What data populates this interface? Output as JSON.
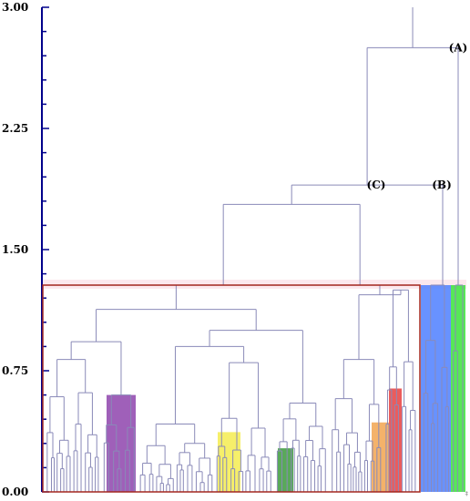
{
  "chart_data": {
    "type": "dendrogram",
    "title": "",
    "xlabel": "",
    "ylabel": "",
    "ylim": [
      0,
      3
    ],
    "y_ticks": [
      "0.00",
      "0.75",
      "1.50",
      "2.25",
      "3.00"
    ],
    "y_tick_values": [
      0,
      0.75,
      1.5,
      2.25,
      3
    ],
    "cut_threshold": 1.28,
    "merges": [
      {
        "label": "(A)",
        "height": 2.75
      },
      {
        "label": "(B)",
        "height": 1.9
      },
      {
        "label": "(C)",
        "height": 1.9
      }
    ],
    "highlighted_clusters": [
      {
        "color": "#8e44ad",
        "height": 0.6
      },
      {
        "color": "#f5ec50",
        "height": 0.37
      },
      {
        "color": "#3c9a3c",
        "height": 0.27
      },
      {
        "color": "#f2a550",
        "height": 0.43
      },
      {
        "color": "#e84040",
        "height": 0.64
      },
      {
        "color": "#4d7fff",
        "height": 1.28
      },
      {
        "color": "#39e339",
        "height": 1.28
      }
    ],
    "colors": {
      "axis": "#00008b",
      "branch": "#8a8ab8",
      "threshold_box": "#a3271f",
      "threshold_band": "#fbe2ea"
    }
  },
  "footer_mark": "‡"
}
